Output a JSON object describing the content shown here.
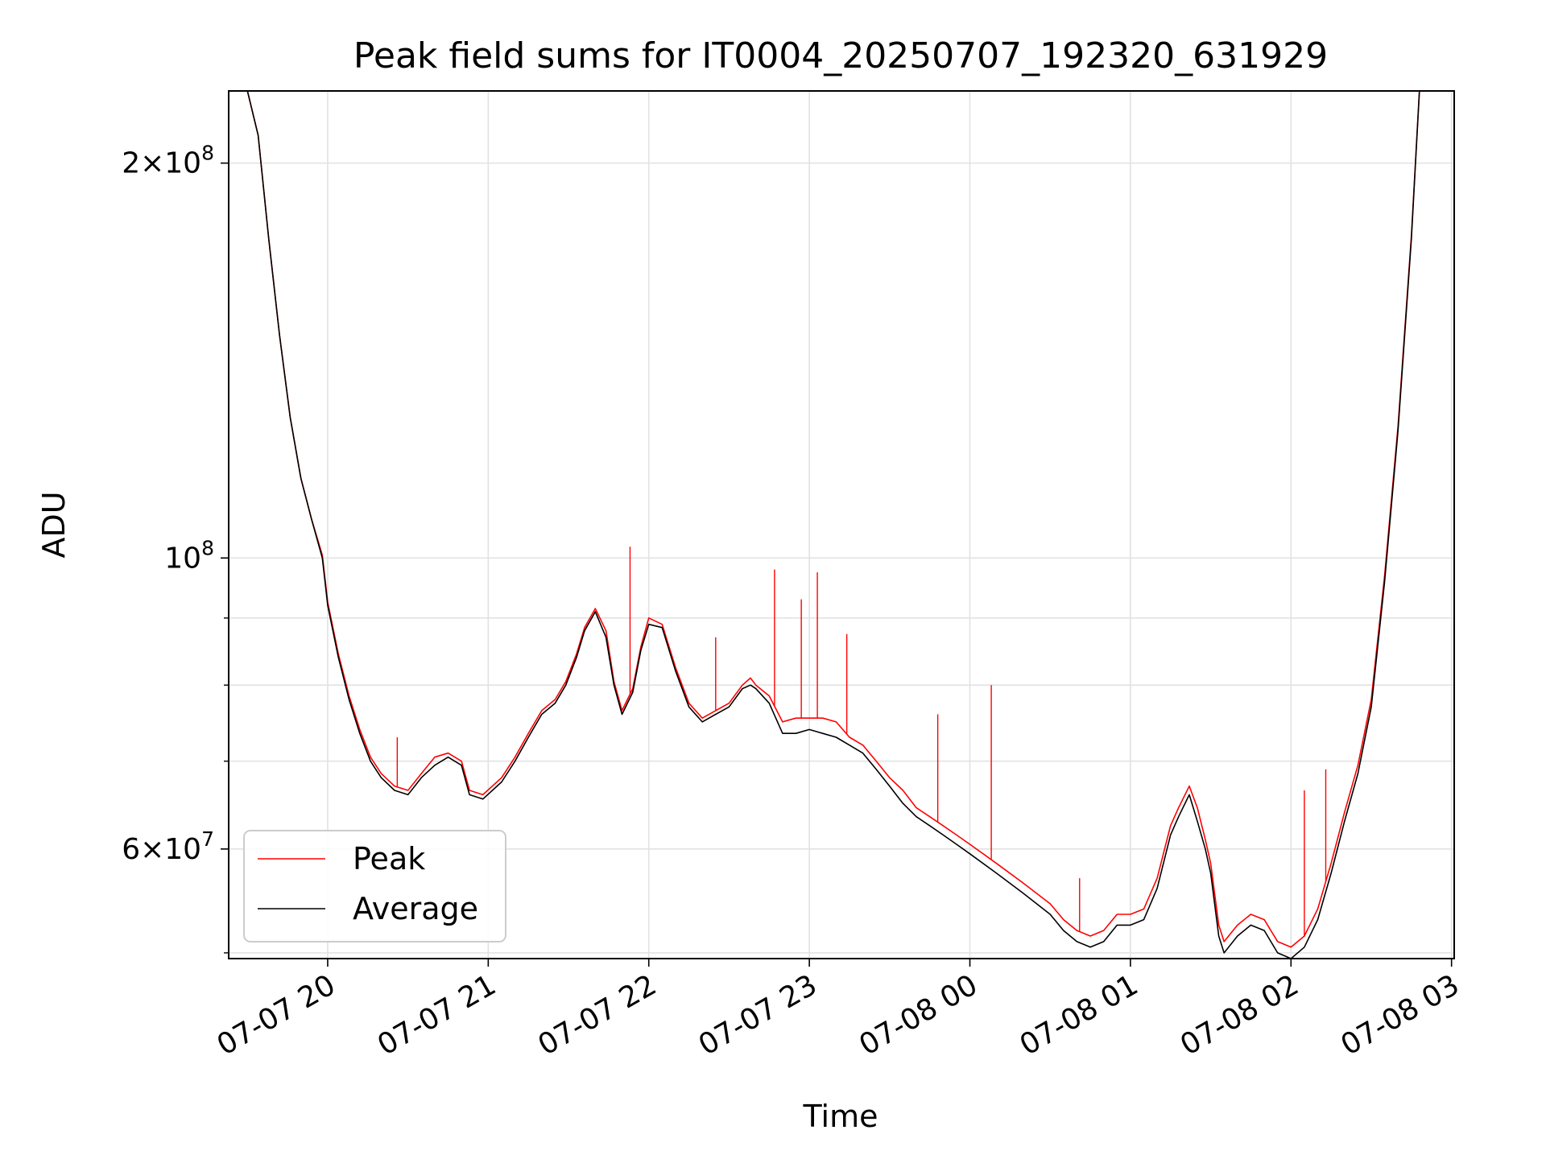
{
  "chart_data": {
    "type": "line",
    "title": "Peak field sums for IT0004_20250707_192320_631929",
    "xlabel": "Time",
    "ylabel": "ADU",
    "y_scale": "log",
    "xlim": [
      "2025-07-07 19:23",
      "2025-07-08 03:01"
    ],
    "ylim": [
      49500000,
      227000000
    ],
    "x_ticks": [
      "07-07 20",
      "07-07 21",
      "07-07 22",
      "07-07 23",
      "07-08 00",
      "07-08 01",
      "07-08 02",
      "07-08 03"
    ],
    "y_ticks": [
      {
        "value": 200000000,
        "mantissa": "2",
        "exponent": "8"
      },
      {
        "value": 100000000,
        "mantissa": "",
        "exponent": "8"
      },
      {
        "value": 60000000,
        "mantissa": "6",
        "exponent": "7"
      }
    ],
    "y_minor_ticks": [
      50000000,
      70000000,
      80000000,
      90000000
    ],
    "grid": true,
    "legend_position": "lower-left",
    "series": [
      {
        "name": "Average",
        "color": "#000000",
        "x": [
          "2025-07-07 19:23",
          "2025-07-07 19:30",
          "2025-07-07 19:34",
          "2025-07-07 19:38",
          "2025-07-07 19:42",
          "2025-07-07 19:46",
          "2025-07-07 19:50",
          "2025-07-07 19:54",
          "2025-07-07 19:58",
          "2025-07-07 20:00",
          "2025-07-07 20:04",
          "2025-07-07 20:08",
          "2025-07-07 20:12",
          "2025-07-07 20:16",
          "2025-07-07 20:20",
          "2025-07-07 20:25",
          "2025-07-07 20:30",
          "2025-07-07 20:35",
          "2025-07-07 20:40",
          "2025-07-07 20:45",
          "2025-07-07 20:50",
          "2025-07-07 20:53",
          "2025-07-07 20:58",
          "2025-07-07 21:05",
          "2025-07-07 21:10",
          "2025-07-07 21:15",
          "2025-07-07 21:20",
          "2025-07-07 21:25",
          "2025-07-07 21:29",
          "2025-07-07 21:33",
          "2025-07-07 21:36",
          "2025-07-07 21:40",
          "2025-07-07 21:44",
          "2025-07-07 21:47",
          "2025-07-07 21:50",
          "2025-07-07 21:54",
          "2025-07-07 21:57",
          "2025-07-07 22:00",
          "2025-07-07 22:05",
          "2025-07-07 22:10",
          "2025-07-07 22:15",
          "2025-07-07 22:20",
          "2025-07-07 22:25",
          "2025-07-07 22:30",
          "2025-07-07 22:35",
          "2025-07-07 22:38",
          "2025-07-07 22:40",
          "2025-07-07 22:45",
          "2025-07-07 22:50",
          "2025-07-07 22:55",
          "2025-07-07 23:00",
          "2025-07-07 23:05",
          "2025-07-07 23:10",
          "2025-07-07 23:15",
          "2025-07-07 23:20",
          "2025-07-07 23:25",
          "2025-07-07 23:30",
          "2025-07-07 23:35",
          "2025-07-07 23:40",
          "2025-07-07 23:45",
          "2025-07-07 23:50",
          "2025-07-07 23:55",
          "2025-07-08 00:00",
          "2025-07-08 00:10",
          "2025-07-08 00:20",
          "2025-07-08 00:30",
          "2025-07-08 00:35",
          "2025-07-08 00:40",
          "2025-07-08 00:45",
          "2025-07-08 00:50",
          "2025-07-08 00:55",
          "2025-07-08 01:00",
          "2025-07-08 01:05",
          "2025-07-08 01:10",
          "2025-07-08 01:15",
          "2025-07-08 01:18",
          "2025-07-08 01:22",
          "2025-07-08 01:25",
          "2025-07-08 01:28",
          "2025-07-08 01:30",
          "2025-07-08 01:33",
          "2025-07-08 01:35",
          "2025-07-08 01:40",
          "2025-07-08 01:45",
          "2025-07-08 01:50",
          "2025-07-08 01:55",
          "2025-07-08 02:00",
          "2025-07-08 02:05",
          "2025-07-08 02:10",
          "2025-07-08 02:15",
          "2025-07-08 02:20",
          "2025-07-08 02:25",
          "2025-07-08 02:30",
          "2025-07-08 02:35",
          "2025-07-08 02:40",
          "2025-07-08 02:45",
          "2025-07-08 02:48",
          "2025-07-08 03:01"
        ],
        "y": [
          227000000,
          227000000,
          210000000,
          175000000,
          148000000,
          128000000,
          115000000,
          107000000,
          100000000,
          92000000,
          84000000,
          78000000,
          73500000,
          70000000,
          68000000,
          66500000,
          66000000,
          68000000,
          69500000,
          70500000,
          69500000,
          66000000,
          65500000,
          67500000,
          70000000,
          73000000,
          76000000,
          77500000,
          80000000,
          84000000,
          88000000,
          91000000,
          87000000,
          80000000,
          76000000,
          79000000,
          85000000,
          89000000,
          88500000,
          82000000,
          77000000,
          75000000,
          76000000,
          77000000,
          79500000,
          80000000,
          79500000,
          77500000,
          73500000,
          73500000,
          74000000,
          73500000,
          73000000,
          72000000,
          71000000,
          69000000,
          67000000,
          65000000,
          63500000,
          62500000,
          61500000,
          60500000,
          59500000,
          57500000,
          55500000,
          53500000,
          52000000,
          51000000,
          50500000,
          51000000,
          52500000,
          52500000,
          53000000,
          56000000,
          61500000,
          63500000,
          66000000,
          63000000,
          60000000,
          57500000,
          51500000,
          50000000,
          51500000,
          52500000,
          52000000,
          50000000,
          49500000,
          50500000,
          53000000,
          57500000,
          63000000,
          68500000,
          77000000,
          96000000,
          125000000,
          175000000,
          227000000,
          227000000
        ]
      },
      {
        "name": "Peak",
        "color": "#ff0000",
        "x": [
          "2025-07-07 19:23",
          "2025-07-07 19:30",
          "2025-07-07 19:34",
          "2025-07-07 19:38",
          "2025-07-07 19:42",
          "2025-07-07 19:46",
          "2025-07-07 19:50",
          "2025-07-07 19:54",
          "2025-07-07 19:58",
          "2025-07-07 20:00",
          "2025-07-07 20:04",
          "2025-07-07 20:08",
          "2025-07-07 20:12",
          "2025-07-07 20:16",
          "2025-07-07 20:20",
          "2025-07-07 20:25",
          "2025-07-07 20:30",
          "2025-07-07 20:35",
          "2025-07-07 20:40",
          "2025-07-07 20:45",
          "2025-07-07 20:50",
          "2025-07-07 20:53",
          "2025-07-07 20:58",
          "2025-07-07 21:05",
          "2025-07-07 21:10",
          "2025-07-07 21:15",
          "2025-07-07 21:20",
          "2025-07-07 21:25",
          "2025-07-07 21:29",
          "2025-07-07 21:33",
          "2025-07-07 21:36",
          "2025-07-07 21:40",
          "2025-07-07 21:44",
          "2025-07-07 21:47",
          "2025-07-07 21:50",
          "2025-07-07 21:54",
          "2025-07-07 21:57",
          "2025-07-07 22:00",
          "2025-07-07 22:05",
          "2025-07-07 22:10",
          "2025-07-07 22:15",
          "2025-07-07 22:20",
          "2025-07-07 22:25",
          "2025-07-07 22:30",
          "2025-07-07 22:35",
          "2025-07-07 22:38",
          "2025-07-07 22:40",
          "2025-07-07 22:45",
          "2025-07-07 22:50",
          "2025-07-07 22:55",
          "2025-07-07 23:00",
          "2025-07-07 23:05",
          "2025-07-07 23:10",
          "2025-07-07 23:15",
          "2025-07-07 23:20",
          "2025-07-07 23:25",
          "2025-07-07 23:30",
          "2025-07-07 23:35",
          "2025-07-07 23:40",
          "2025-07-07 23:45",
          "2025-07-07 23:50",
          "2025-07-07 23:55",
          "2025-07-08 00:00",
          "2025-07-08 00:10",
          "2025-07-08 00:20",
          "2025-07-08 00:30",
          "2025-07-08 00:35",
          "2025-07-08 00:40",
          "2025-07-08 00:45",
          "2025-07-08 00:50",
          "2025-07-08 00:55",
          "2025-07-08 01:00",
          "2025-07-08 01:05",
          "2025-07-08 01:10",
          "2025-07-08 01:15",
          "2025-07-08 01:18",
          "2025-07-08 01:22",
          "2025-07-08 01:25",
          "2025-07-08 01:28",
          "2025-07-08 01:30",
          "2025-07-08 01:33",
          "2025-07-08 01:35",
          "2025-07-08 01:40",
          "2025-07-08 01:45",
          "2025-07-08 01:50",
          "2025-07-08 01:55",
          "2025-07-08 02:00",
          "2025-07-08 02:05",
          "2025-07-08 02:10",
          "2025-07-08 02:15",
          "2025-07-08 02:20",
          "2025-07-08 02:25",
          "2025-07-08 02:30",
          "2025-07-08 02:35",
          "2025-07-08 02:40",
          "2025-07-08 02:45",
          "2025-07-08 02:48",
          "2025-07-08 03:01"
        ],
        "y": [
          227000000,
          227000000,
          210000000,
          175000000,
          148000000,
          128000000,
          115000000,
          107000000,
          100500000,
          92500000,
          84500000,
          78500000,
          74000000,
          70500000,
          68500000,
          67000000,
          66500000,
          68500000,
          70500000,
          71000000,
          70000000,
          66500000,
          66000000,
          68000000,
          70500000,
          73500000,
          76500000,
          78000000,
          80500000,
          84500000,
          88500000,
          91500000,
          88000000,
          80500000,
          76500000,
          79500000,
          85500000,
          90000000,
          89000000,
          82500000,
          77500000,
          75500000,
          76500000,
          77500000,
          80000000,
          81000000,
          80000000,
          78500000,
          75000000,
          75500000,
          75500000,
          75500000,
          75000000,
          73000000,
          72000000,
          70000000,
          68000000,
          66500000,
          64500000,
          63500000,
          62500000,
          61500000,
          60500000,
          58500000,
          56500000,
          54500000,
          53000000,
          52000000,
          51500000,
          52000000,
          53500000,
          53500000,
          54000000,
          57000000,
          62500000,
          64500000,
          67000000,
          64500000,
          61000000,
          58500000,
          52500000,
          51000000,
          52500000,
          53500000,
          53000000,
          51000000,
          50500000,
          51500000,
          54000000,
          58500000,
          64000000,
          69500000,
          78000000,
          97000000,
          126000000,
          176000000,
          227000000,
          227000000
        ],
        "spikes": [
          {
            "x": "2025-07-07 20:26",
            "y": 73000000
          },
          {
            "x": "2025-07-07 21:53",
            "y": 102000000
          },
          {
            "x": "2025-07-07 22:25",
            "y": 87000000
          },
          {
            "x": "2025-07-07 22:47",
            "y": 98000000
          },
          {
            "x": "2025-07-07 22:57",
            "y": 93000000
          },
          {
            "x": "2025-07-07 23:03",
            "y": 97500000
          },
          {
            "x": "2025-07-07 23:14",
            "y": 87500000
          },
          {
            "x": "2025-07-07 23:48",
            "y": 76000000
          },
          {
            "x": "2025-07-08 00:08",
            "y": 80000000
          },
          {
            "x": "2025-07-08 00:41",
            "y": 57000000
          },
          {
            "x": "2025-07-08 02:05",
            "y": 66500000
          },
          {
            "x": "2025-07-08 02:13",
            "y": 69000000
          }
        ]
      }
    ]
  }
}
